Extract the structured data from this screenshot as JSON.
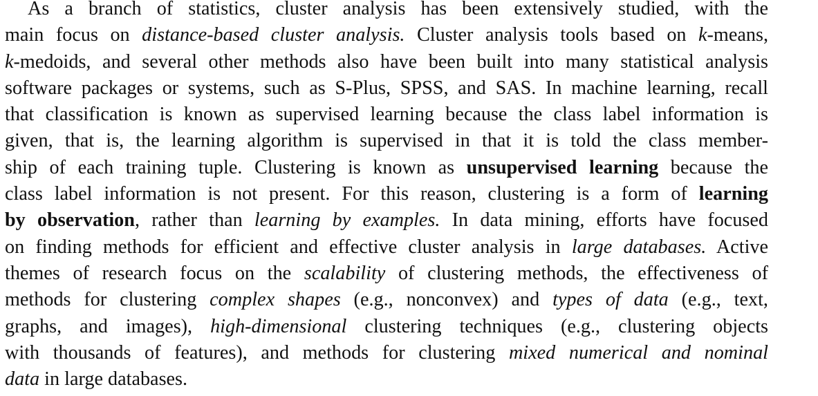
{
  "paragraph": {
    "lines": [
      [
        {
          "t": "As a branch of statistics, cluster analysis has been extensively studied, with the",
          "s": "n"
        }
      ],
      [
        {
          "t": "main focus on ",
          "s": "n"
        },
        {
          "t": "distance-based cluster analysis.",
          "s": "i"
        },
        {
          "t": " Cluster analysis tools based on ",
          "s": "n"
        },
        {
          "t": "k",
          "s": "i"
        },
        {
          "t": "-means,",
          "s": "n"
        }
      ],
      [
        {
          "t": "k",
          "s": "i"
        },
        {
          "t": "-medoids, and several other methods also have been built into many statistical analysis",
          "s": "n"
        }
      ],
      [
        {
          "t": "software packages or systems, such as S-Plus, SPSS, and SAS. In machine learning, recall",
          "s": "n"
        }
      ],
      [
        {
          "t": "that classification is known as supervised learning because the class label information is",
          "s": "n"
        }
      ],
      [
        {
          "t": "given, that is, the learning algorithm is supervised in that it is told the class member-",
          "s": "n"
        }
      ],
      [
        {
          "t": "ship of each training tuple. Clustering is known as ",
          "s": "n"
        },
        {
          "t": "unsupervised learning",
          "s": "b"
        },
        {
          "t": " because the",
          "s": "n"
        }
      ],
      [
        {
          "t": "class label information is not present. For this reason, clustering is a form of ",
          "s": "n"
        },
        {
          "t": "learning",
          "s": "b"
        }
      ],
      [
        {
          "t": "by observation",
          "s": "b"
        },
        {
          "t": ", rather than ",
          "s": "n"
        },
        {
          "t": "learning by examples.",
          "s": "i"
        },
        {
          "t": " In data mining, efforts have focused",
          "s": "n"
        }
      ],
      [
        {
          "t": "on finding methods for efficient and effective cluster analysis in ",
          "s": "n"
        },
        {
          "t": "large databases.",
          "s": "i"
        },
        {
          "t": " Active",
          "s": "n"
        }
      ],
      [
        {
          "t": "themes of research focus on the ",
          "s": "n"
        },
        {
          "t": "scalability",
          "s": "i"
        },
        {
          "t": " of clustering methods, the effectiveness of",
          "s": "n"
        }
      ],
      [
        {
          "t": "methods for clustering ",
          "s": "n"
        },
        {
          "t": "complex shapes",
          "s": "i"
        },
        {
          "t": " (e.g., nonconvex) and ",
          "s": "n"
        },
        {
          "t": "types of data",
          "s": "i"
        },
        {
          "t": " (e.g., text,",
          "s": "n"
        }
      ],
      [
        {
          "t": "graphs, and images), ",
          "s": "n"
        },
        {
          "t": "high-dimensional",
          "s": "i"
        },
        {
          "t": " clustering techniques (e.g., clustering objects",
          "s": "n"
        }
      ],
      [
        {
          "t": "with thousands of features), and methods for clustering ",
          "s": "n"
        },
        {
          "t": "mixed numerical and nominal",
          "s": "i"
        }
      ],
      [
        {
          "t": "data",
          "s": "i"
        },
        {
          "t": " in large databases.",
          "s": "n"
        }
      ]
    ]
  }
}
